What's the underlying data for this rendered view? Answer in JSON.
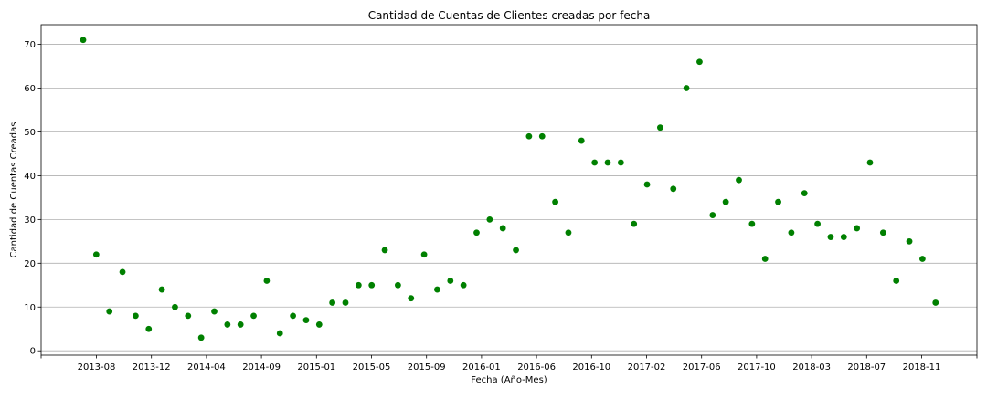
{
  "chart_data": {
    "type": "scatter",
    "title": "Cantidad de Cuentas de Clientes creadas por fecha",
    "xlabel": "Fecha (Año-Mes)",
    "ylabel": "Cantidad de Cuentas Creadas",
    "x_tick_labels": [
      "2013-08",
      "2013-12",
      "2014-04",
      "2014-09",
      "2015-01",
      "2015-05",
      "2015-09",
      "2016-01",
      "2016-06",
      "2016-10",
      "2017-02",
      "2017-06",
      "2017-10",
      "2018-03",
      "2018-07",
      "2018-11"
    ],
    "y_ticks": [
      0,
      10,
      20,
      30,
      40,
      50,
      60,
      70
    ],
    "ylim": [
      -1,
      74.5
    ],
    "grid": "horizontal",
    "color": "#008000",
    "series": [
      {
        "values": [
          71,
          22,
          9,
          18,
          8,
          5,
          14,
          10,
          8,
          3,
          9,
          6,
          6,
          8,
          16,
          4,
          8,
          7,
          6,
          11,
          11,
          15,
          15,
          23,
          15,
          12,
          22,
          14,
          16,
          15,
          27,
          30,
          28,
          23,
          49,
          49,
          34,
          27,
          48,
          43,
          43,
          43,
          29,
          38,
          51,
          37,
          60,
          66,
          31,
          34,
          39,
          29,
          21,
          34,
          27,
          36,
          29,
          26,
          26,
          28,
          43,
          27,
          16,
          25,
          21,
          11
        ]
      }
    ]
  }
}
